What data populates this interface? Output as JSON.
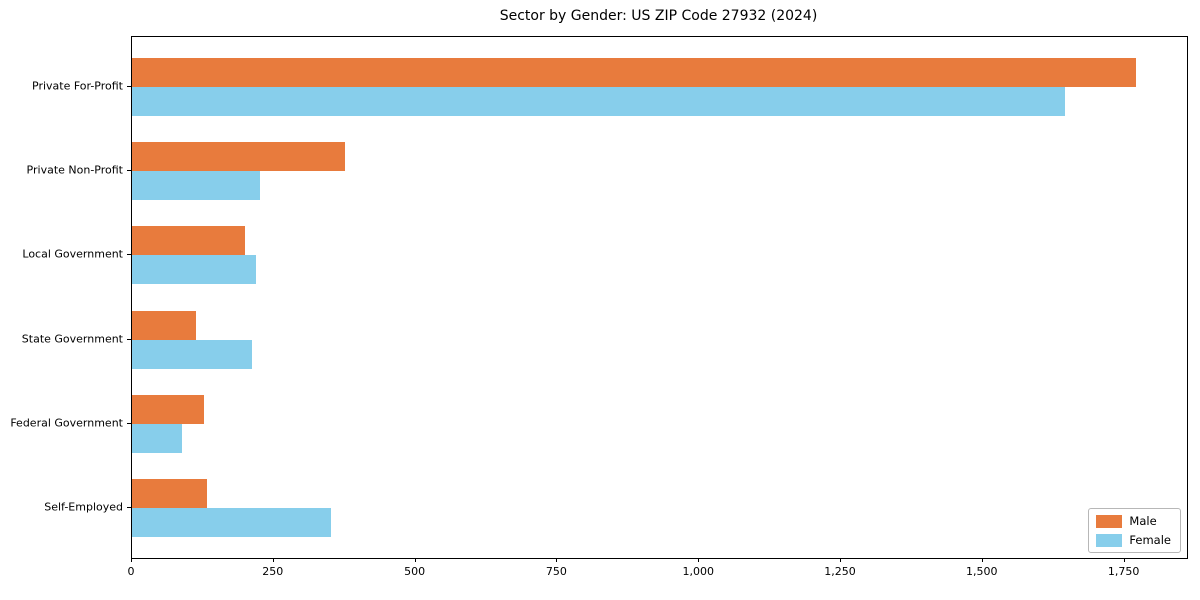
{
  "chart_data": {
    "type": "bar",
    "orientation": "horizontal",
    "title": "Sector by Gender: US ZIP Code 27932 (2024)",
    "categories": [
      "Private For-Profit",
      "Private Non-Profit",
      "Local Government",
      "State Government",
      "Federal Government",
      "Self-Employed"
    ],
    "series": [
      {
        "name": "Male",
        "color": "#e87b3d",
        "values": [
          1770,
          375,
          200,
          113,
          127,
          132
        ]
      },
      {
        "name": "Female",
        "color": "#87ceeb",
        "values": [
          1645,
          225,
          218,
          212,
          88,
          350
        ]
      }
    ],
    "xlabel": "",
    "ylabel": "",
    "xlim": [
      0,
      1860
    ],
    "xticks": [
      0,
      250,
      500,
      750,
      1000,
      1250,
      1500,
      1750
    ],
    "xtick_labels": [
      "0",
      "250",
      "500",
      "750",
      "1,000",
      "1,250",
      "1,500",
      "1,750"
    ],
    "grid": false,
    "legend_position": "lower right",
    "plot_background": "#ffffff",
    "spine_color": "#000000"
  }
}
